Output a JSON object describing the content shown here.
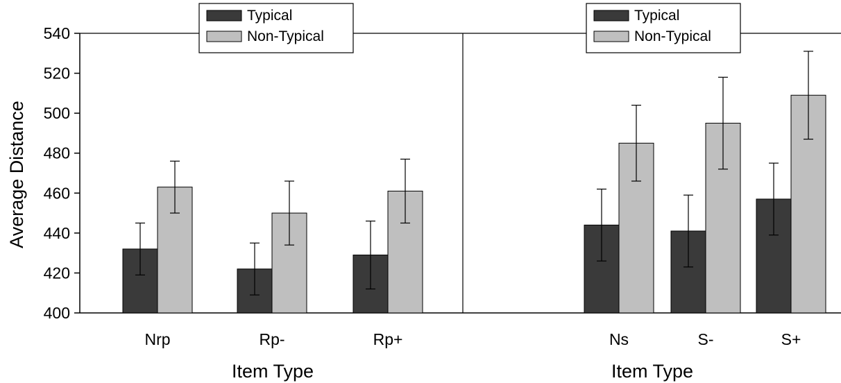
{
  "colors": {
    "typical": "#3a3a3a",
    "non_typical": "#bfbfbf",
    "axis": "#000000",
    "background": "#ffffff"
  },
  "chart_data": {
    "type": "bar",
    "ylabel": "Average Distance",
    "ylim": [
      400,
      540
    ],
    "yticks": [
      400,
      420,
      440,
      460,
      480,
      500,
      520,
      540
    ],
    "grid": false,
    "panels": [
      {
        "xlabel": "Item Type",
        "categories": [
          "Nrp",
          "Rp-",
          "Rp+"
        ],
        "legend": {
          "placement": "top-center",
          "entries": [
            "Typical",
            "Non-Typical"
          ]
        },
        "series": [
          {
            "name": "Typical",
            "values": [
              432,
              422,
              429
            ],
            "error_low": [
              419,
              409,
              412
            ],
            "error_high": [
              445,
              435,
              446
            ]
          },
          {
            "name": "Non-Typical",
            "values": [
              463,
              450,
              461
            ],
            "error_low": [
              450,
              434,
              445
            ],
            "error_high": [
              476,
              466,
              477
            ]
          }
        ]
      },
      {
        "xlabel": "Item Type",
        "categories": [
          "Ns",
          "S-",
          "S+"
        ],
        "legend": {
          "placement": "top-center",
          "entries": [
            "Typical",
            "Non-Typical"
          ]
        },
        "series": [
          {
            "name": "Typical",
            "values": [
              444,
              441,
              457
            ],
            "error_low": [
              426,
              423,
              439
            ],
            "error_high": [
              462,
              459,
              475
            ]
          },
          {
            "name": "Non-Typical",
            "values": [
              485,
              495,
              509
            ],
            "error_low": [
              466,
              472,
              487
            ],
            "error_high": [
              504,
              518,
              531
            ]
          }
        ]
      }
    ]
  }
}
